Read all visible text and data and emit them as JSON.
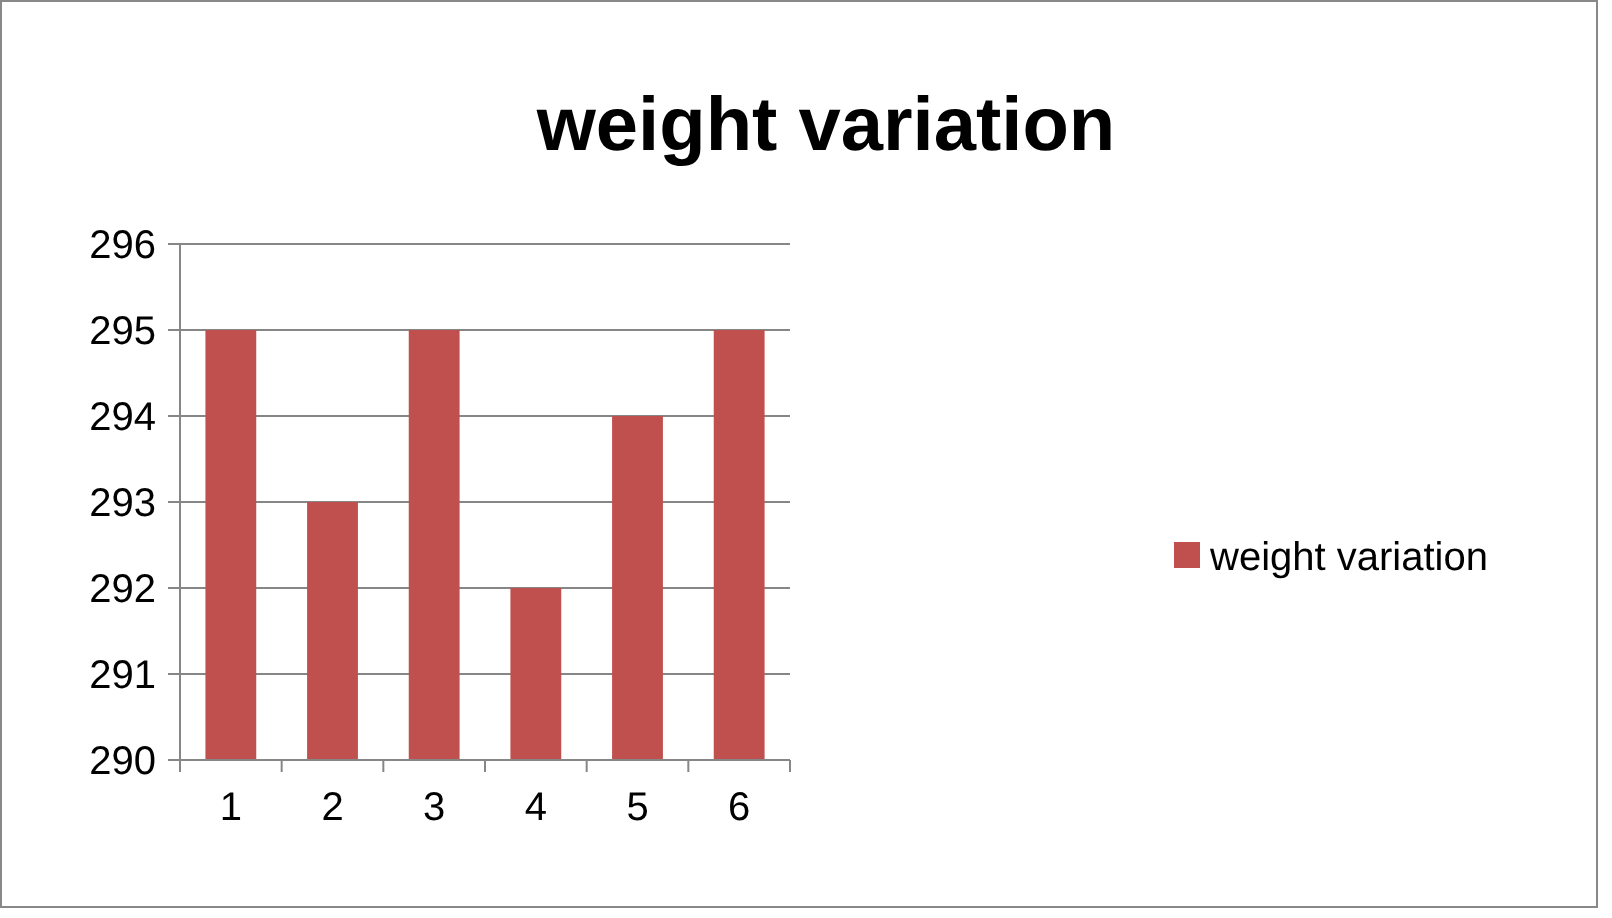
{
  "chart_data": {
    "type": "bar",
    "title": "weight variation",
    "categories": [
      "1",
      "2",
      "3",
      "4",
      "5",
      "6"
    ],
    "series": [
      {
        "name": "weight variation",
        "color": "#c0504d",
        "values": [
          295,
          293,
          295,
          292,
          294,
          295
        ]
      }
    ],
    "ylim": [
      290,
      296
    ],
    "yticks": [
      290,
      291,
      292,
      293,
      294,
      295,
      296
    ],
    "grid": "y",
    "legend": "right"
  }
}
